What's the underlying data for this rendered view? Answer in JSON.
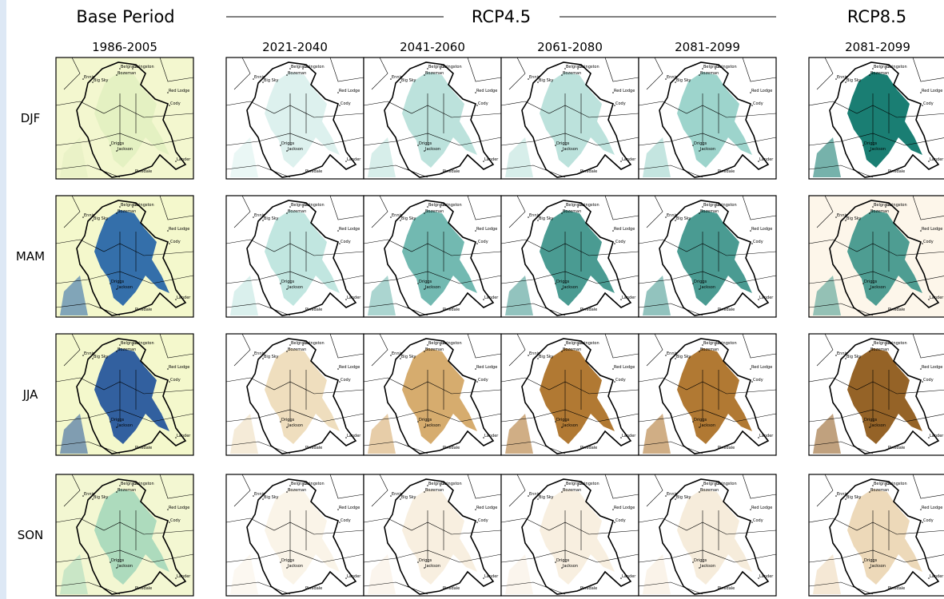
{
  "header": {
    "groups": [
      "Base Period",
      "RCP4.5",
      "RCP8.5"
    ],
    "periods": [
      "1986-2005",
      "2021-2040",
      "2041-2060",
      "2061-2080",
      "2081-2099",
      "2081-2099"
    ]
  },
  "seasons": [
    "DJF",
    "MAM",
    "JJA",
    "SON"
  ],
  "towns": [
    "Belgrade",
    "Bozeman",
    "Livingston",
    "Ennis",
    "Big Sky",
    "Red Lodge",
    "Cody",
    "Driggs",
    "Jackson",
    "Pinedale",
    "Lander"
  ],
  "shading": [
    [
      {
        "bg": "#f3f7cf",
        "blob": "#e2efc0",
        "op": 0.9
      },
      {
        "bg": "#ffffff",
        "blob": "#c6e8e3",
        "op": 0.6
      },
      {
        "bg": "#ffffff",
        "blob": "#9fd6cd",
        "op": 0.7
      },
      {
        "bg": "#ffffff",
        "blob": "#9fd6cd",
        "op": 0.7
      },
      {
        "bg": "#ffffff",
        "blob": "#7cc6bb",
        "op": 0.75
      },
      {
        "bg": "#ffffff",
        "blob": "#017064",
        "op": 0.9
      }
    ],
    [
      {
        "bg": "#f4f8cc",
        "blob": "#1f5fa6",
        "op": 0.9
      },
      {
        "bg": "#ffffff",
        "blob": "#a6dbd3",
        "op": 0.7
      },
      {
        "bg": "#ffffff",
        "blob": "#4fa89d",
        "op": 0.8
      },
      {
        "bg": "#ffffff",
        "blob": "#2a8a7f",
        "op": 0.85
      },
      {
        "bg": "#ffffff",
        "blob": "#2a8a7f",
        "op": 0.85
      },
      {
        "bg": "#fdf6ea",
        "blob": "#2f8d82",
        "op": 0.85
      }
    ],
    [
      {
        "bg": "#f4f8cc",
        "blob": "#1d4f9a",
        "op": 0.9
      },
      {
        "bg": "#ffffff",
        "blob": "#ebd6ae",
        "op": 0.8
      },
      {
        "bg": "#ffffff",
        "blob": "#cf9d55",
        "op": 0.85
      },
      {
        "bg": "#ffffff",
        "blob": "#a86a1d",
        "op": 0.9
      },
      {
        "bg": "#ffffff",
        "blob": "#a86a1d",
        "op": 0.9
      },
      {
        "bg": "#ffffff",
        "blob": "#8a5210",
        "op": 0.9
      }
    ],
    [
      {
        "bg": "#f3f7d2",
        "blob": "#8fcfb4",
        "op": 0.7
      },
      {
        "bg": "#ffffff",
        "blob": "#f7ecd9",
        "op": 0.6
      },
      {
        "bg": "#ffffff",
        "blob": "#f3e4cc",
        "op": 0.6
      },
      {
        "bg": "#ffffff",
        "blob": "#f3e4cc",
        "op": 0.6
      },
      {
        "bg": "#ffffff",
        "blob": "#f0dfc3",
        "op": 0.6
      },
      {
        "bg": "#ffffff",
        "blob": "#e6c99b",
        "op": 0.7
      }
    ]
  ]
}
